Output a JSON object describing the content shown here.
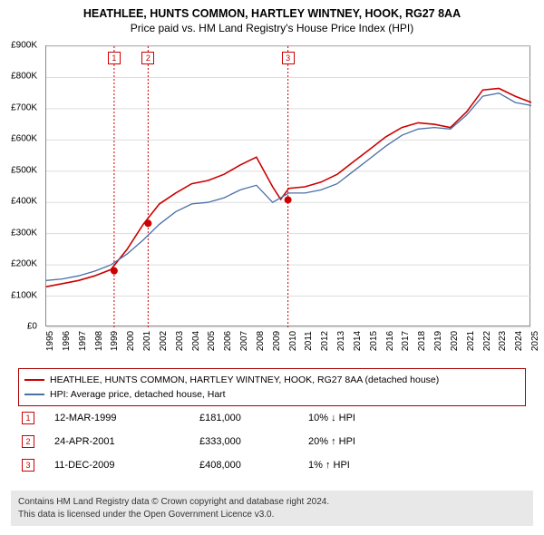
{
  "title": "HEATHLEE, HUNTS COMMON, HARTLEY WINTNEY, HOOK, RG27 8AA",
  "subtitle": "Price paid vs. HM Land Registry's House Price Index (HPI)",
  "chart": {
    "type": "line",
    "background_color": "#ffffff",
    "grid_color": "#dddddd",
    "border_color": "#888888",
    "xlim": [
      1995,
      2025
    ],
    "ylim": [
      0,
      900000
    ],
    "ytick_step": 100000,
    "xtick_step": 1,
    "y_tick_labels": [
      "£0",
      "£100K",
      "£200K",
      "£300K",
      "£400K",
      "£500K",
      "£600K",
      "£700K",
      "£800K",
      "£900K"
    ],
    "x_tick_labels": [
      "1995",
      "1996",
      "1997",
      "1998",
      "1999",
      "2000",
      "2001",
      "2002",
      "2003",
      "2004",
      "2005",
      "2006",
      "2007",
      "2008",
      "2009",
      "2010",
      "2011",
      "2012",
      "2013",
      "2014",
      "2015",
      "2016",
      "2017",
      "2018",
      "2019",
      "2020",
      "2021",
      "2022",
      "2023",
      "2024",
      "2025"
    ],
    "label_fontsize": 10,
    "series": [
      {
        "name": "property",
        "label": "HEATHLEE, HUNTS COMMON, HARTLEY WINTNEY, HOOK, RG27 8AA (detached house)",
        "color": "#cc0000",
        "line_width": 1.6,
        "x": [
          1995,
          1996,
          1997,
          1998,
          1999,
          2000,
          2001,
          2002,
          2003,
          2004,
          2005,
          2006,
          2007,
          2008,
          2009,
          2009.5,
          2010,
          2011,
          2012,
          2013,
          2014,
          2015,
          2016,
          2017,
          2018,
          2019,
          2020,
          2021,
          2022,
          2023,
          2024,
          2025
        ],
        "y": [
          130000,
          140000,
          150000,
          165000,
          185000,
          250000,
          330000,
          395000,
          430000,
          460000,
          470000,
          490000,
          520000,
          545000,
          450000,
          410000,
          445000,
          450000,
          465000,
          490000,
          530000,
          570000,
          610000,
          640000,
          655000,
          650000,
          640000,
          690000,
          760000,
          765000,
          740000,
          720000
        ]
      },
      {
        "name": "hpi",
        "label": "HPI: Average price, detached house, Hart",
        "color": "#4a6fa5",
        "line_width": 1.3,
        "x": [
          1995,
          1996,
          1997,
          1998,
          1999,
          2000,
          2001,
          2002,
          2003,
          2004,
          2005,
          2006,
          2007,
          2008,
          2009,
          2010,
          2011,
          2012,
          2013,
          2014,
          2015,
          2016,
          2017,
          2018,
          2019,
          2020,
          2021,
          2022,
          2023,
          2024,
          2025
        ],
        "y": [
          150000,
          155000,
          165000,
          180000,
          200000,
          235000,
          280000,
          330000,
          370000,
          395000,
          400000,
          415000,
          440000,
          455000,
          400000,
          430000,
          430000,
          440000,
          460000,
          500000,
          540000,
          580000,
          615000,
          635000,
          640000,
          635000,
          680000,
          740000,
          750000,
          720000,
          710000
        ]
      }
    ],
    "event_markers": [
      {
        "badge": "1",
        "x": 1999.2,
        "y": 181000,
        "dot_color": "#cc0000"
      },
      {
        "badge": "2",
        "x": 2001.3,
        "y": 333000,
        "dot_color": "#cc0000"
      },
      {
        "badge": "3",
        "x": 2009.95,
        "y": 408000,
        "dot_color": "#cc0000"
      }
    ]
  },
  "legend": {
    "border_color": "#aa0000",
    "items": [
      {
        "color": "#cc0000",
        "label": "HEATHLEE, HUNTS COMMON, HARTLEY WINTNEY, HOOK, RG27 8AA (detached house)"
      },
      {
        "color": "#4a6fa5",
        "label": "HPI: Average price, detached house, Hart"
      }
    ]
  },
  "events": [
    {
      "badge": "1",
      "date": "12-MAR-1999",
      "price": "£181,000",
      "delta": "10% ↓ HPI"
    },
    {
      "badge": "2",
      "date": "24-APR-2001",
      "price": "£333,000",
      "delta": "20% ↑ HPI"
    },
    {
      "badge": "3",
      "date": "11-DEC-2009",
      "price": "£408,000",
      "delta": "1% ↑ HPI"
    }
  ],
  "footer": {
    "line1": "Contains HM Land Registry data © Crown copyright and database right 2024.",
    "line2": "This data is licensed under the Open Government Licence v3.0."
  }
}
